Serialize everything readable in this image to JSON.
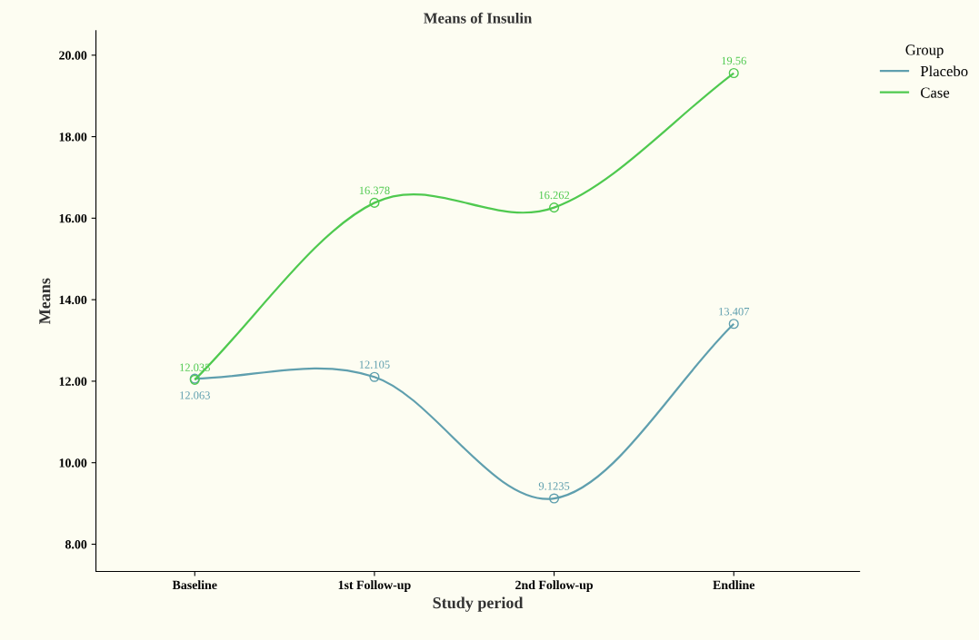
{
  "chart_data": {
    "type": "line",
    "title": "Means of Insulin",
    "xlabel": "Study period",
    "ylabel": "Means",
    "legend_title": "Group",
    "categories": [
      "Baseline",
      "1st Follow-up",
      "2nd Follow-up",
      "Endline"
    ],
    "series": [
      {
        "name": "Placebo",
        "color": "#5f9fae",
        "values": [
          12.063,
          12.105,
          9.1235,
          13.407
        ]
      },
      {
        "name": "Case",
        "color": "#4fc94f",
        "values": [
          12.035,
          16.378,
          16.262,
          19.56
        ]
      }
    ],
    "ylim": [
      7.33,
      20.6
    ],
    "yticks": [
      {
        "value": 8,
        "label": "8.00"
      },
      {
        "value": 10,
        "label": "10.00"
      },
      {
        "value": 12,
        "label": "12.00"
      },
      {
        "value": 14,
        "label": "14.00"
      },
      {
        "value": 16,
        "label": "16.00"
      },
      {
        "value": 18,
        "label": "18.00"
      },
      {
        "value": 20,
        "label": "20.00"
      }
    ],
    "data_labels": true,
    "grid": false,
    "legend": "top right",
    "marker": "circle",
    "line_style": "solid"
  }
}
